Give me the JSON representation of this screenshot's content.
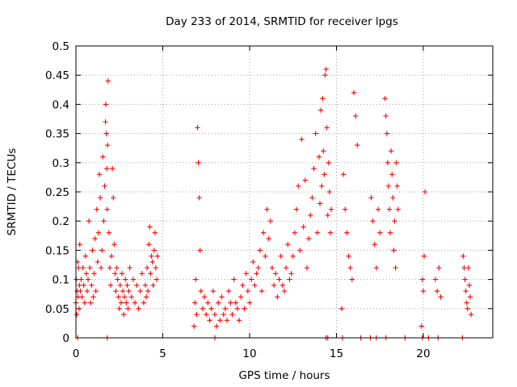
{
  "chart_data": {
    "type": "scatter",
    "title": "Day 233 of 2014, SRMTID for receiver lpgs",
    "xlabel": "GPS time / hours",
    "ylabel": "SRMTID / TECUs",
    "xlim": [
      0,
      24
    ],
    "ylim": [
      0,
      0.5
    ],
    "x_ticks": [
      0,
      5,
      10,
      15,
      20
    ],
    "x_tick_labels": [
      "0",
      "5",
      "10",
      "15",
      "20"
    ],
    "y_ticks": [
      0,
      0.05,
      0.1,
      0.15,
      0.2,
      0.25,
      0.3,
      0.35,
      0.4,
      0.45,
      0.5
    ],
    "y_tick_labels": [
      "0",
      "0.05",
      "0.1",
      "0.15",
      "0.2",
      "0.25",
      "0.3",
      "0.35",
      "0.4",
      "0.45",
      "0.5"
    ],
    "grid": true,
    "marker": "+",
    "color": "#ff0000",
    "series": [
      {
        "name": "SRMTID",
        "x": [
          0.0,
          0.02,
          0.05,
          0.08,
          0.1,
          0.12,
          0.15,
          0.18,
          0.2,
          0.22,
          0.25,
          0.3,
          0.35,
          0.4,
          0.45,
          0.5,
          0.55,
          0.6,
          0.65,
          0.7,
          0.75,
          0.8,
          0.85,
          0.9,
          0.95,
          1.0,
          1.05,
          1.1,
          1.15,
          1.2,
          1.25,
          1.3,
          1.35,
          1.4,
          1.45,
          1.5,
          1.55,
          1.6,
          1.65,
          1.7,
          1.72,
          1.75,
          1.78,
          1.8,
          1.82,
          1.85,
          1.9,
          1.95,
          2.0,
          2.05,
          2.1,
          2.15,
          2.2,
          2.25,
          2.3,
          2.35,
          2.4,
          2.45,
          2.5,
          2.55,
          2.6,
          2.65,
          2.7,
          2.75,
          2.8,
          2.85,
          2.9,
          2.95,
          3.0,
          3.05,
          3.1,
          3.2,
          3.3,
          3.4,
          3.5,
          3.6,
          3.7,
          3.8,
          3.9,
          4.0,
          4.05,
          4.1,
          4.15,
          4.2,
          4.25,
          4.3,
          4.35,
          4.4,
          4.45,
          4.5,
          4.55,
          4.6,
          4.65,
          4.7,
          6.8,
          6.85,
          6.9,
          6.95,
          7.0,
          7.05,
          7.1,
          7.15,
          7.2,
          7.3,
          7.4,
          7.5,
          7.6,
          7.7,
          7.8,
          7.9,
          8.0,
          8.1,
          8.2,
          8.3,
          8.4,
          8.5,
          8.6,
          8.7,
          8.8,
          8.9,
          9.0,
          9.1,
          9.2,
          9.3,
          9.4,
          9.5,
          9.6,
          9.7,
          9.8,
          9.9,
          10.0,
          10.1,
          10.2,
          10.3,
          10.4,
          10.5,
          10.6,
          10.7,
          10.8,
          10.9,
          11.0,
          11.1,
          11.2,
          11.3,
          11.4,
          11.5,
          11.6,
          11.7,
          11.8,
          11.9,
          12.0,
          12.1,
          12.2,
          12.3,
          12.4,
          12.5,
          12.6,
          12.7,
          12.8,
          12.9,
          13.0,
          13.1,
          13.2,
          13.3,
          13.4,
          13.5,
          13.6,
          13.7,
          13.8,
          13.9,
          14.0,
          14.05,
          14.1,
          14.15,
          14.2,
          14.25,
          14.3,
          14.35,
          14.4,
          14.45,
          14.5,
          14.55,
          14.6,
          14.65,
          14.7,
          15.3,
          15.4,
          15.5,
          15.6,
          15.7,
          15.8,
          15.9,
          16.0,
          16.1,
          16.2,
          17.0,
          17.1,
          17.2,
          17.3,
          17.4,
          17.5,
          17.8,
          17.85,
          17.9,
          17.95,
          18.0,
          18.05,
          18.1,
          18.15,
          18.2,
          18.25,
          18.3,
          18.35,
          18.4,
          18.45,
          18.5,
          18.55,
          19.9,
          19.95,
          20.0,
          20.05,
          20.1,
          20.7,
          20.8,
          20.9,
          21.0,
          22.3,
          22.35,
          22.4,
          22.45,
          22.5,
          22.55,
          22.6,
          22.65,
          22.7,
          22.75,
          15.35,
          16.4,
          16.95,
          17.3,
          17.85,
          18.95,
          19.95,
          20.3,
          20.85,
          22.25,
          0.1,
          1.8,
          8.0,
          14.4,
          14.5
        ],
        "y": [
          0.06,
          0.1,
          0.04,
          0.08,
          0.13,
          0.07,
          0.12,
          0.05,
          0.09,
          0.16,
          0.08,
          0.1,
          0.07,
          0.12,
          0.09,
          0.06,
          0.14,
          0.11,
          0.08,
          0.1,
          0.2,
          0.12,
          0.06,
          0.09,
          0.15,
          0.07,
          0.11,
          0.17,
          0.08,
          0.22,
          0.13,
          0.18,
          0.28,
          0.24,
          0.12,
          0.15,
          0.31,
          0.2,
          0.26,
          0.37,
          0.4,
          0.35,
          0.29,
          0.22,
          0.33,
          0.44,
          0.18,
          0.12,
          0.09,
          0.14,
          0.29,
          0.24,
          0.16,
          0.11,
          0.08,
          0.12,
          0.1,
          0.07,
          0.05,
          0.09,
          0.06,
          0.11,
          0.08,
          0.04,
          0.07,
          0.1,
          0.06,
          0.09,
          0.05,
          0.08,
          0.12,
          0.07,
          0.1,
          0.06,
          0.09,
          0.05,
          0.08,
          0.11,
          0.06,
          0.09,
          0.07,
          0.12,
          0.08,
          0.16,
          0.19,
          0.11,
          0.14,
          0.13,
          0.09,
          0.15,
          0.18,
          0.12,
          0.1,
          0.14,
          0.02,
          0.06,
          0.1,
          0.04,
          0.36,
          0.3,
          0.24,
          0.15,
          0.08,
          0.05,
          0.07,
          0.04,
          0.06,
          0.03,
          0.05,
          0.08,
          0.04,
          0.02,
          0.06,
          0.03,
          0.07,
          0.04,
          0.05,
          0.03,
          0.08,
          0.06,
          0.04,
          0.1,
          0.06,
          0.05,
          0.03,
          0.07,
          0.09,
          0.05,
          0.11,
          0.08,
          0.06,
          0.1,
          0.13,
          0.09,
          0.11,
          0.12,
          0.15,
          0.08,
          0.18,
          0.14,
          0.22,
          0.17,
          0.2,
          0.12,
          0.09,
          0.11,
          0.07,
          0.1,
          0.14,
          0.09,
          0.08,
          0.12,
          0.16,
          0.1,
          0.11,
          0.14,
          0.18,
          0.22,
          0.26,
          0.15,
          0.34,
          0.19,
          0.27,
          0.12,
          0.17,
          0.21,
          0.24,
          0.29,
          0.35,
          0.18,
          0.31,
          0.23,
          0.39,
          0.26,
          0.41,
          0.32,
          0.28,
          0.45,
          0.46,
          0.36,
          0.21,
          0.3,
          0.25,
          0.18,
          0.22,
          0.05,
          0.28,
          0.22,
          0.18,
          0.14,
          0.12,
          0.1,
          0.42,
          0.38,
          0.33,
          0.24,
          0.2,
          0.16,
          0.12,
          0.22,
          0.18,
          0.41,
          0.38,
          0.35,
          0.3,
          0.26,
          0.22,
          0.18,
          0.32,
          0.28,
          0.24,
          0.15,
          0.2,
          0.12,
          0.3,
          0.26,
          0.22,
          0.02,
          0.1,
          0.08,
          0.14,
          0.25,
          0.1,
          0.08,
          0.12,
          0.07,
          0.14,
          0.12,
          0.1,
          0.08,
          0.06,
          0.05,
          0.12,
          0.09,
          0.07,
          0.04,
          0.0,
          0.0,
          0.0,
          0.0,
          0.0,
          0.0,
          0.0,
          0.0,
          0.0,
          0.0,
          0.0,
          0.0,
          0.0,
          0.0,
          0.0
        ]
      }
    ]
  }
}
